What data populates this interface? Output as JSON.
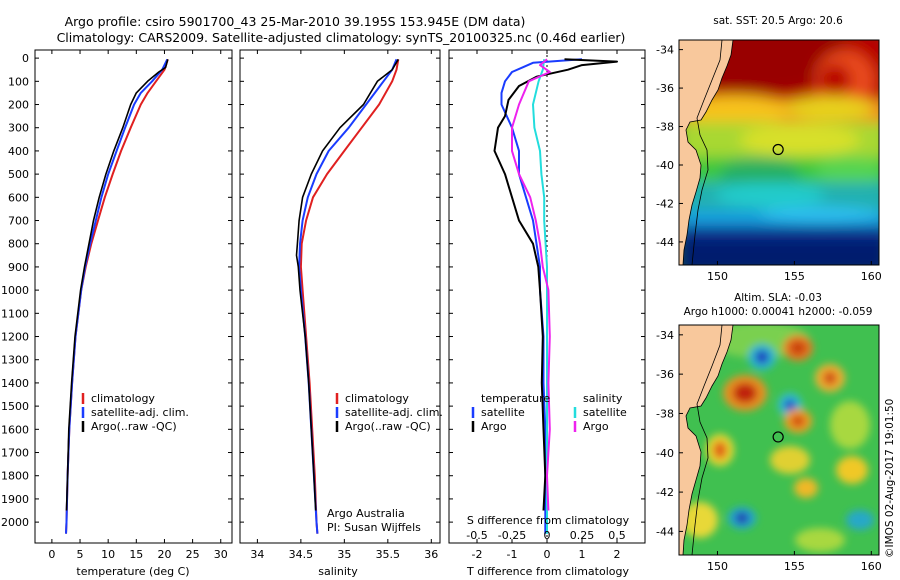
{
  "header": {
    "title_line1": "Argo profile: csiro 5901700_43 25-Mar-2010 39.195S 153.945E (DM data)",
    "title_line2": "Climatology: CARS2009. Satellite-adjusted climatology: synTS_20100325.nc (0.46d earlier)"
  },
  "footer": {
    "credit": "©IMOS 02-Aug-2017 19:01:50"
  },
  "colors": {
    "climatology": "#e02020",
    "satellite": "#1a3cff",
    "argo": "#000000",
    "sal_satellite": "#22dddd",
    "sal_argo": "#ee22ee",
    "land": "#f8c89c"
  },
  "chart_data": [
    {
      "type": "line",
      "panel": "temperature",
      "xlabel": "temperature (deg C)",
      "ylabel": "",
      "xlim": [
        -3,
        32
      ],
      "ylim": [
        2100,
        0
      ],
      "xticks": [
        0,
        5,
        10,
        15,
        20,
        25,
        30
      ],
      "xtick_labels": [
        "0",
        "5",
        "10",
        "15",
        "20",
        "25",
        "30"
      ],
      "yticks": [
        0,
        100,
        200,
        300,
        400,
        500,
        600,
        700,
        800,
        900,
        1000,
        1100,
        1200,
        1300,
        1400,
        1500,
        1600,
        1700,
        1800,
        1900,
        2000
      ],
      "ytick_labels": [
        "0",
        "100",
        "200",
        "300",
        "400",
        "500",
        "600",
        "700",
        "800",
        "900",
        "1000",
        "1100",
        "1200",
        "1300",
        "1400",
        "1500",
        "1600",
        "1700",
        "1800",
        "1900",
        "2000"
      ],
      "legend": [
        "climatology",
        "satellite-adj. clim.",
        "Argo(..raw -QC)"
      ],
      "series": [
        {
          "name": "climatology",
          "depth": [
            5,
            50,
            100,
            150,
            200,
            300,
            400,
            500,
            600,
            700,
            800,
            900,
            1000,
            1200,
            1400,
            1600,
            1800,
            2000,
            2050
          ],
          "values": [
            20.6,
            20.0,
            18.5,
            17.0,
            15.8,
            14.0,
            12.3,
            10.8,
            9.4,
            8.2,
            7.0,
            6.0,
            5.2,
            4.2,
            3.6,
            3.1,
            2.8,
            2.6,
            2.5
          ]
        },
        {
          "name": "satellite-adj. clim.",
          "depth": [
            5,
            50,
            100,
            150,
            200,
            300,
            400,
            500,
            600,
            700,
            800,
            900,
            1000,
            1200,
            1400,
            1600,
            1800,
            2000,
            2050
          ],
          "values": [
            20.5,
            19.6,
            17.8,
            15.8,
            14.6,
            13.0,
            11.5,
            10.0,
            8.8,
            7.8,
            6.8,
            5.9,
            5.2,
            4.2,
            3.6,
            3.1,
            2.8,
            2.6,
            2.5
          ]
        },
        {
          "name": "Argo(..raw -QC)",
          "depth": [
            5,
            40,
            60,
            100,
            150,
            200,
            300,
            400,
            500,
            600,
            700,
            800,
            900,
            1000,
            1200,
            1400,
            1600,
            1800,
            1950
          ],
          "values": [
            20.6,
            20.2,
            19.0,
            17.0,
            15.0,
            14.0,
            12.6,
            11.0,
            9.6,
            8.4,
            7.4,
            6.6,
            5.8,
            5.1,
            4.1,
            3.5,
            3.0,
            2.8,
            2.6
          ]
        }
      ]
    },
    {
      "type": "line",
      "panel": "salinity",
      "xlabel": "salinity",
      "xlim": [
        33.8,
        36.1
      ],
      "ylim": [
        2100,
        0
      ],
      "xticks": [
        34,
        34.5,
        35,
        35.5,
        36
      ],
      "xtick_labels": [
        "34",
        "34.5",
        "35",
        "35.5",
        "36"
      ],
      "legend": [
        "climatology",
        "satellite-adj. clim.",
        "Argo(..raw -QC)"
      ],
      "annotations": [
        "Argo Australia",
        "PI: Susan Wijffels"
      ],
      "series": [
        {
          "name": "climatology",
          "depth": [
            5,
            50,
            100,
            200,
            300,
            400,
            500,
            600,
            700,
            800,
            900,
            1000,
            1200,
            1400,
            1600,
            1800,
            2000,
            2050
          ],
          "values": [
            35.62,
            35.6,
            35.55,
            35.4,
            35.2,
            35.0,
            34.8,
            34.64,
            34.56,
            34.51,
            34.5,
            34.52,
            34.56,
            34.6,
            34.63,
            34.66,
            34.68,
            34.69
          ]
        },
        {
          "name": "satellite-adj. clim.",
          "depth": [
            5,
            50,
            100,
            200,
            300,
            400,
            500,
            600,
            700,
            800,
            900,
            1000,
            1200,
            1400,
            1600,
            1800,
            2000,
            2050
          ],
          "values": [
            35.6,
            35.55,
            35.45,
            35.25,
            35.05,
            34.82,
            34.68,
            34.58,
            34.52,
            34.49,
            34.48,
            34.5,
            34.55,
            34.59,
            34.62,
            34.65,
            34.68,
            34.69
          ]
        },
        {
          "name": "Argo(..raw -QC)",
          "depth": [
            5,
            50,
            100,
            150,
            200,
            300,
            400,
            500,
            600,
            700,
            800,
            850,
            900,
            1000,
            1200,
            1400,
            1600,
            1800,
            1950
          ],
          "values": [
            35.62,
            35.55,
            35.38,
            35.3,
            35.22,
            34.95,
            34.75,
            34.62,
            34.52,
            34.48,
            34.46,
            34.45,
            34.47,
            34.49,
            34.55,
            34.59,
            34.62,
            34.65,
            34.67
          ]
        }
      ]
    },
    {
      "type": "line",
      "panel": "difference",
      "xlabel": "T difference from climatology",
      "xlabel_top": "S difference from climatology",
      "xlim": [
        -2.8,
        2.8
      ],
      "ylim": [
        2100,
        0
      ],
      "xticks": [
        -2,
        -1,
        0,
        1,
        2
      ],
      "xtick_labels": [
        "-2",
        "-1",
        "0",
        "1",
        "2"
      ],
      "s_ticks": [
        -0.5,
        -0.25,
        0,
        0.25,
        0.5
      ],
      "s_tick_labels": [
        "-0.5",
        "-0.25",
        "0",
        "0.25",
        "0.5"
      ],
      "s_scale": 4,
      "legend_left": {
        "header": "temperature",
        "items": [
          "satellite",
          "Argo"
        ]
      },
      "legend_right": {
        "header": "salinity",
        "items": [
          "satellite",
          "Argo"
        ]
      },
      "series": [
        {
          "name": "temperature satellite",
          "depth": [
            5,
            20,
            40,
            60,
            100,
            150,
            200,
            300,
            400,
            500,
            600,
            700,
            800,
            900,
            1000,
            1200,
            1400,
            1600,
            1800,
            2000,
            2050
          ],
          "values": [
            1.0,
            -0.4,
            -0.7,
            -1.0,
            -1.2,
            -1.3,
            -1.3,
            -1.0,
            -0.8,
            -0.8,
            -0.6,
            -0.4,
            -0.3,
            -0.2,
            -0.2,
            -0.1,
            -0.1,
            -0.05,
            -0.05,
            -0.05,
            -0.05
          ]
        },
        {
          "name": "temperature Argo",
          "depth": [
            5,
            15,
            30,
            50,
            80,
            120,
            180,
            250,
            300,
            400,
            500,
            600,
            700,
            800,
            900,
            1000,
            1200,
            1400,
            1600,
            1800,
            1950
          ],
          "values": [
            0.5,
            2.0,
            1.0,
            0.6,
            -0.3,
            -0.8,
            -1.1,
            -1.2,
            -1.4,
            -1.5,
            -1.2,
            -1.0,
            -0.8,
            -0.4,
            -0.25,
            -0.2,
            -0.12,
            -0.15,
            -0.1,
            -0.05,
            -0.1
          ]
        },
        {
          "name": "salinity satellite",
          "depth": [
            5,
            50,
            100,
            200,
            300,
            400,
            500,
            600,
            700,
            800,
            900,
            1000,
            1100,
            1200,
            1400,
            1600,
            1800,
            2000,
            2050
          ],
          "values": [
            -0.02,
            -0.03,
            -0.06,
            -0.1,
            -0.09,
            -0.05,
            -0.04,
            -0.02,
            -0.02,
            -0.01,
            0.0,
            0.0,
            0.0,
            0.0,
            0.0,
            0.0,
            0.0,
            0.0,
            0.0
          ]
        },
        {
          "name": "salinity Argo",
          "depth": [
            5,
            30,
            60,
            100,
            200,
            300,
            400,
            500,
            600,
            700,
            800,
            900,
            1000,
            1200,
            1400,
            1600,
            1800,
            1950
          ],
          "values": [
            0.0,
            -0.05,
            0.02,
            -0.13,
            -0.2,
            -0.25,
            -0.25,
            -0.2,
            -0.12,
            -0.08,
            -0.05,
            -0.03,
            0.01,
            0.02,
            0.01,
            0.02,
            0.0,
            0.01
          ]
        }
      ]
    },
    {
      "type": "heatmap",
      "panel": "sst_map",
      "title": "sat. SST: 20.5 Argo: 20.6",
      "xticks": [
        150,
        155,
        160
      ],
      "xtick_labels": [
        "150",
        "155",
        "160"
      ],
      "yticks": [
        -34,
        -36,
        -38,
        -40,
        -42,
        -44
      ],
      "ytick_labels": [
        "-34",
        "-36",
        "-38",
        "-40",
        "-42",
        "-44"
      ],
      "xlim": [
        147.5,
        160.5
      ],
      "ylim": [
        -45.2,
        -33.5
      ],
      "marker": {
        "lon": 153.945,
        "lat": -39.195
      }
    },
    {
      "type": "heatmap",
      "panel": "sla_map",
      "title_line1": "Altim. SLA: -0.03",
      "title_line2": "Argo h1000: 0.00041 h2000: -0.059",
      "xticks": [
        150,
        155,
        160
      ],
      "xtick_labels": [
        "150",
        "155",
        "160"
      ],
      "yticks": [
        -34,
        -36,
        -38,
        -40,
        -42,
        -44
      ],
      "ytick_labels": [
        "-34",
        "-36",
        "-38",
        "-40",
        "-42",
        "-44"
      ],
      "xlim": [
        147.5,
        160.5
      ],
      "ylim": [
        -45.2,
        -33.5
      ],
      "marker": {
        "lon": 153.945,
        "lat": -39.195
      }
    }
  ]
}
